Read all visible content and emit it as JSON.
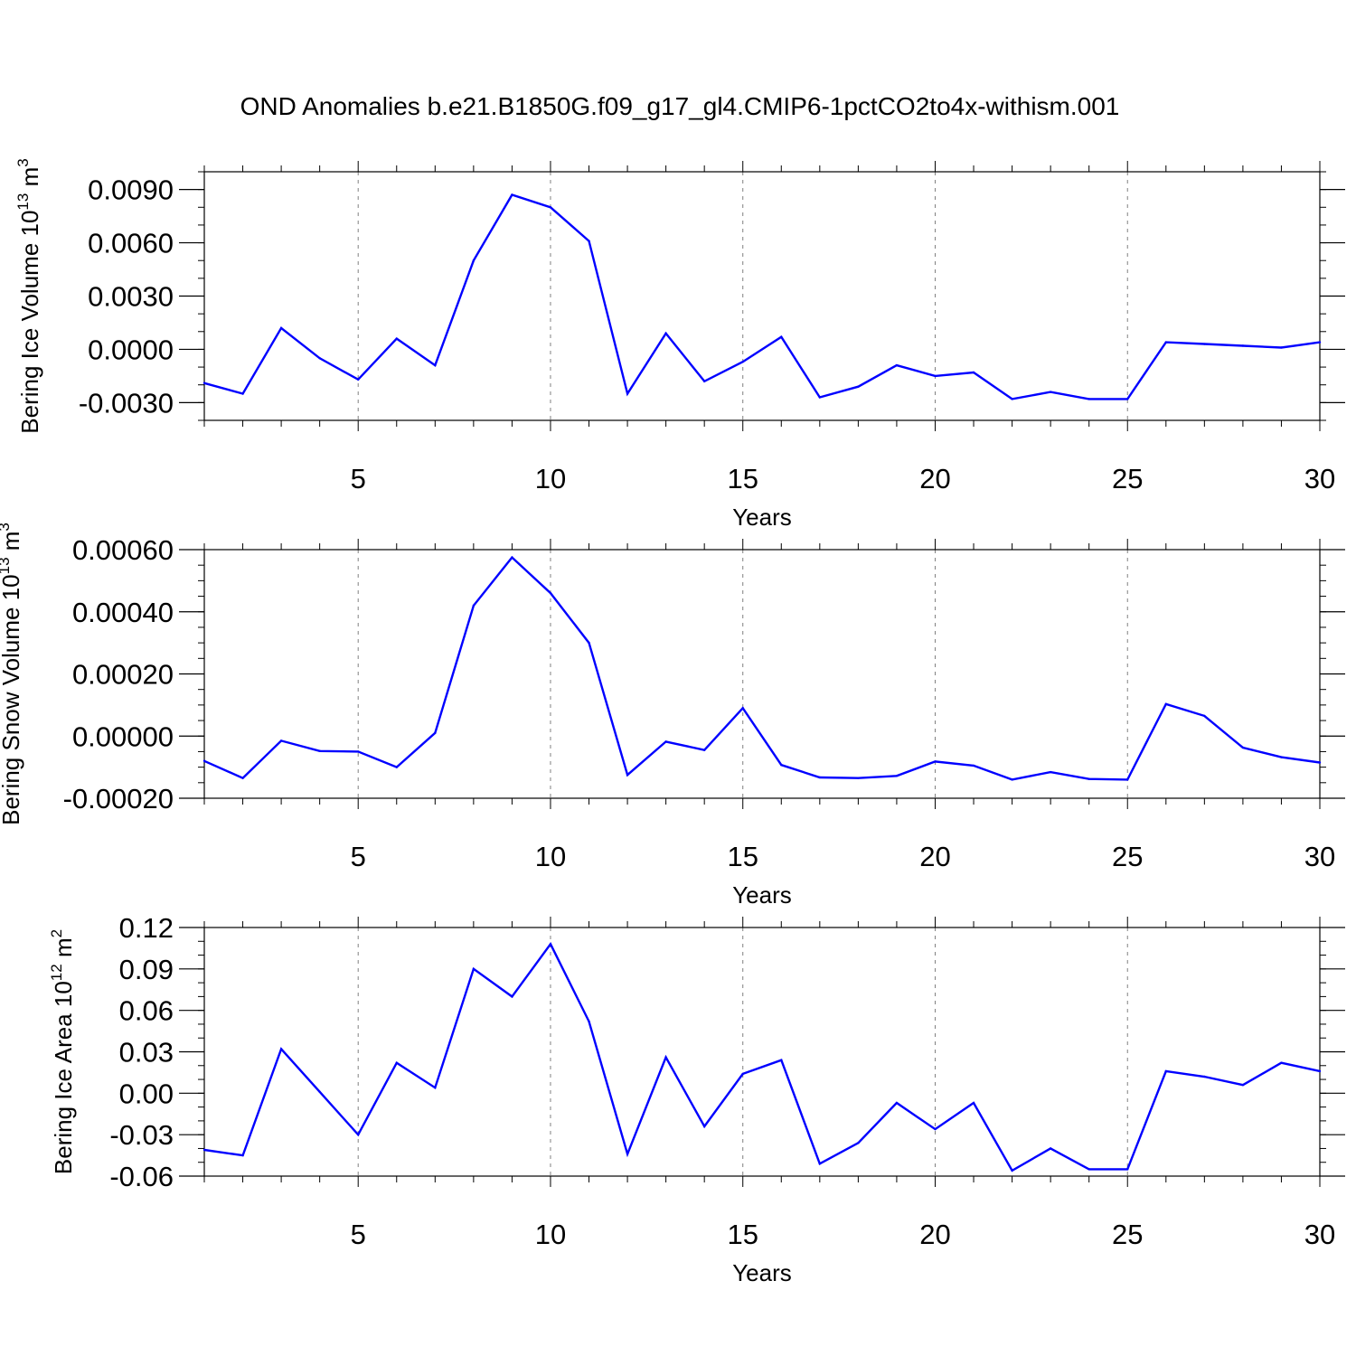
{
  "title": "OND Anomalies b.e21.B1850G.f09_g17_gl4.CMIP6-1pctCO2to4x-withism.001",
  "colors": {
    "line": "#0000ff",
    "axis": "#000000",
    "grid": "#808080"
  },
  "chart_data": [
    {
      "type": "line",
      "name": "ice-volume",
      "ylabel_main": "Bering Ice Volume 10",
      "ylabel_exp": "13",
      "ylabel_unit": " m",
      "ylabel_unit_exp": "3",
      "xlabel": "Years",
      "xlim": [
        1,
        30
      ],
      "ylim": [
        -0.004,
        0.01
      ],
      "x_ticks": [
        5,
        10,
        15,
        20,
        25,
        30
      ],
      "y_ticks": [
        0.009,
        0.006,
        0.003,
        0.0,
        -0.003
      ],
      "y_tick_labels": [
        "0.0090",
        "0.0060",
        "0.0030",
        "0.0000",
        "-0.0030"
      ],
      "y_minor_step": 0.001,
      "x": [
        1,
        2,
        3,
        4,
        5,
        6,
        7,
        8,
        9,
        10,
        11,
        12,
        13,
        14,
        15,
        16,
        17,
        18,
        19,
        20,
        21,
        22,
        23,
        24,
        25,
        26,
        27,
        28,
        29,
        30
      ],
      "series": [
        {
          "name": "Bering Ice Volume",
          "values": [
            -0.0019,
            -0.0025,
            0.0012,
            -0.0005,
            -0.0017,
            0.0006,
            -0.0009,
            0.005,
            0.0087,
            0.008,
            0.0061,
            -0.0025,
            0.0009,
            -0.0018,
            -0.0007,
            0.0007,
            -0.0027,
            -0.0021,
            -0.0009,
            -0.0015,
            -0.0013,
            -0.0028,
            -0.0024,
            -0.0028,
            -0.0028,
            0.0004,
            0.0003,
            0.0002,
            0.0001,
            0.0004
          ]
        }
      ]
    },
    {
      "type": "line",
      "name": "snow-volume",
      "ylabel_main": "Bering Snow Volume 10",
      "ylabel_exp": "13",
      "ylabel_unit": " m",
      "ylabel_unit_exp": "3",
      "xlabel": "Years",
      "xlim": [
        1,
        30
      ],
      "ylim": [
        -0.0002,
        0.0006
      ],
      "x_ticks": [
        5,
        10,
        15,
        20,
        25,
        30
      ],
      "y_ticks": [
        0.0006,
        0.0004,
        0.0002,
        0.0,
        -0.0002
      ],
      "y_tick_labels": [
        "0.00060",
        "0.00040",
        "0.00020",
        "0.00000",
        "-0.00020"
      ],
      "y_minor_step": 5e-05,
      "x": [
        1,
        2,
        3,
        4,
        5,
        6,
        7,
        8,
        9,
        10,
        11,
        12,
        13,
        14,
        15,
        16,
        17,
        18,
        19,
        20,
        21,
        22,
        23,
        24,
        25,
        26,
        27,
        28,
        29,
        30
      ],
      "series": [
        {
          "name": "Bering Snow Volume",
          "values": [
            -8e-05,
            -0.000135,
            -1.5e-05,
            -4.8e-05,
            -5e-05,
            -0.0001,
            1e-05,
            0.00042,
            0.000575,
            0.00046,
            0.0003,
            -0.000125,
            -1.8e-05,
            -4.5e-05,
            9e-05,
            -9.3e-05,
            -0.000133,
            -0.000135,
            -0.000128,
            -8.2e-05,
            -9.5e-05,
            -0.00014,
            -0.000116,
            -0.000138,
            -0.00014,
            0.000103,
            6.5e-05,
            -3.7e-05,
            -6.8e-05,
            -8.5e-05
          ]
        }
      ]
    },
    {
      "type": "line",
      "name": "ice-area",
      "ylabel_main": "Bering Ice Area 10",
      "ylabel_exp": "12",
      "ylabel_unit": " m",
      "ylabel_unit_exp": "2",
      "xlabel": "Years",
      "xlim": [
        1,
        30
      ],
      "ylim": [
        -0.06,
        0.12
      ],
      "x_ticks": [
        5,
        10,
        15,
        20,
        25,
        30
      ],
      "y_ticks": [
        0.12,
        0.09,
        0.06,
        0.03,
        0.0,
        -0.03,
        -0.06
      ],
      "y_tick_labels": [
        "0.12",
        "0.09",
        "0.06",
        "0.03",
        "0.00",
        "-0.03",
        "-0.06"
      ],
      "y_minor_step": 0.01,
      "x": [
        1,
        2,
        3,
        4,
        5,
        6,
        7,
        8,
        9,
        10,
        11,
        12,
        13,
        14,
        15,
        16,
        17,
        18,
        19,
        20,
        21,
        22,
        23,
        24,
        25,
        26,
        27,
        28,
        29,
        30
      ],
      "series": [
        {
          "name": "Bering Ice Area",
          "values": [
            -0.041,
            -0.045,
            0.032,
            0.001,
            -0.03,
            0.022,
            0.004,
            0.09,
            0.07,
            0.108,
            0.052,
            -0.044,
            0.026,
            -0.024,
            0.014,
            0.024,
            -0.051,
            -0.036,
            -0.007,
            -0.026,
            -0.007,
            -0.056,
            -0.04,
            -0.055,
            -0.055,
            0.016,
            0.012,
            0.006,
            0.022,
            0.016
          ]
        }
      ]
    }
  ]
}
